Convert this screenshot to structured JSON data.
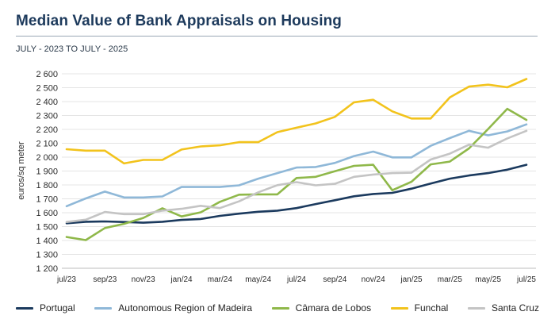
{
  "header": {
    "title": "Median Value of Bank Appraisals on Housing",
    "subtitle": "JULY - 2023 TO JULY - 2025"
  },
  "chart_data": {
    "type": "line",
    "title": "Median Value of Bank Appraisals on Housing",
    "subtitle": "JULY - 2023 TO JULY - 2025",
    "xlabel": "",
    "ylabel": "euros/sq meter",
    "ylim": [
      1200,
      2600
    ],
    "yticks": [
      1200,
      1300,
      1400,
      1500,
      1600,
      1700,
      1800,
      1900,
      2000,
      2100,
      2200,
      2300,
      2400,
      2500,
      2600
    ],
    "ytick_labels": [
      "1 200",
      "1 300",
      "1 400",
      "1 500",
      "1 600",
      "1 700",
      "1 800",
      "1 900",
      "2 000",
      "2 100",
      "2 200",
      "2 300",
      "2 400",
      "2 500",
      "2 600"
    ],
    "x": [
      "jul/23",
      "aug/23",
      "sep/23",
      "oct/23",
      "nov/23",
      "dec/23",
      "jan/24",
      "feb/24",
      "mar/24",
      "apr/24",
      "may/24",
      "jun/24",
      "jul/24",
      "aug/24",
      "sep/24",
      "oct/24",
      "nov/24",
      "dec/24",
      "jan/25",
      "feb/25",
      "mar/25",
      "apr/25",
      "may/25",
      "jun/25",
      "jul/25"
    ],
    "xtick_labels": [
      "jul/23",
      "sep/23",
      "nov/23",
      "jan/24",
      "mar/24",
      "may/24",
      "jul/24",
      "sep/24",
      "nov/24",
      "jan/25",
      "mar/25",
      "may/25",
      "jul/25"
    ],
    "grid": "horizontal",
    "legend_position": "bottom",
    "series": [
      {
        "name": "Portugal",
        "color": "#1b3a5e",
        "values": [
          1524,
          1535,
          1537,
          1533,
          1528,
          1535,
          1548,
          1555,
          1577,
          1593,
          1607,
          1615,
          1633,
          1662,
          1690,
          1718,
          1735,
          1743,
          1773,
          1810,
          1845,
          1868,
          1885,
          1910,
          1945
        ]
      },
      {
        "name": "Autonomous Region of Madeira",
        "color": "#8fb8d8",
        "values": [
          1647,
          1703,
          1752,
          1710,
          1710,
          1717,
          1785,
          1785,
          1785,
          1797,
          1845,
          1885,
          1925,
          1929,
          1958,
          2008,
          2040,
          1998,
          1998,
          2082,
          2137,
          2190,
          2157,
          2185,
          2236
        ]
      },
      {
        "name": "Câmara de Lobos",
        "color": "#8fb84a",
        "values": [
          1425,
          1403,
          1490,
          1520,
          1562,
          1632,
          1573,
          1603,
          1678,
          1730,
          1732,
          1732,
          1850,
          1858,
          1898,
          1937,
          1945,
          1762,
          1823,
          1948,
          1968,
          2063,
          2203,
          2348,
          2268
        ]
      },
      {
        "name": "Funchal",
        "color": "#f2c31c",
        "values": [
          2057,
          2047,
          2047,
          1955,
          1980,
          1980,
          2055,
          2077,
          2085,
          2108,
          2108,
          2180,
          2212,
          2243,
          2290,
          2395,
          2413,
          2330,
          2278,
          2278,
          2430,
          2508,
          2522,
          2503,
          2563
        ]
      },
      {
        "name": "Santa Cruz",
        "color": "#c4c4c4",
        "values": [
          1533,
          1550,
          1605,
          1590,
          1590,
          1615,
          1628,
          1650,
          1633,
          1682,
          1747,
          1798,
          1820,
          1797,
          1808,
          1858,
          1875,
          1885,
          1888,
          1983,
          2025,
          2090,
          2068,
          2135,
          2190
        ]
      }
    ]
  }
}
